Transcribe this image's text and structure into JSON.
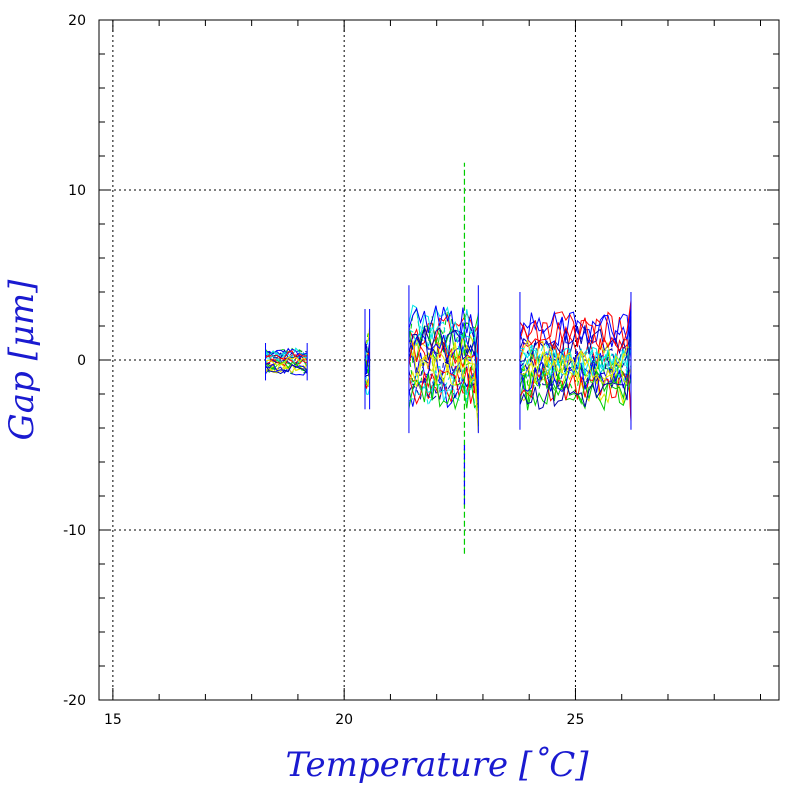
{
  "chart_data": {
    "type": "line",
    "xlabel": "Temperature [˚C]",
    "ylabel": "Gap [μm]",
    "xlim": [
      14.7,
      29.4
    ],
    "ylim": [
      -20,
      20
    ],
    "x_ticks": [
      "15",
      "20",
      "25"
    ],
    "y_ticks": [
      "20",
      "10",
      "0",
      "-10",
      "-20"
    ],
    "x_tick_values": [
      15,
      20,
      25
    ],
    "y_tick_values": [
      20,
      10,
      0,
      -10,
      -20
    ],
    "grid": true,
    "grid_x": [
      15,
      20,
      25
    ],
    "grid_y": [
      10,
      0,
      -10
    ],
    "series_colors": [
      "#ff0000",
      "#00cc00",
      "#0000ff",
      "#00e5e5",
      "#e5e500",
      "#0000aa"
    ],
    "clusters": [
      {
        "x_range": [
          18.3,
          19.2
        ],
        "y_range": [
          -1.2,
          1.0
        ]
      },
      {
        "x_range": [
          20.45,
          20.55
        ],
        "y_range": [
          -2.9,
          3.0
        ]
      },
      {
        "x_range": [
          21.4,
          22.9
        ],
        "y_range": [
          -4.3,
          4.4
        ]
      },
      {
        "x_range": [
          23.8,
          26.2
        ],
        "y_range": [
          -4.1,
          4.0
        ]
      }
    ],
    "spikes": [
      {
        "x": 22.6,
        "y_min": -11.4,
        "y_max": 11.6,
        "color": "#00cc00"
      },
      {
        "x": 22.6,
        "y_min": -8.5,
        "y_max": -5.0,
        "color": "#0000ff"
      }
    ]
  }
}
